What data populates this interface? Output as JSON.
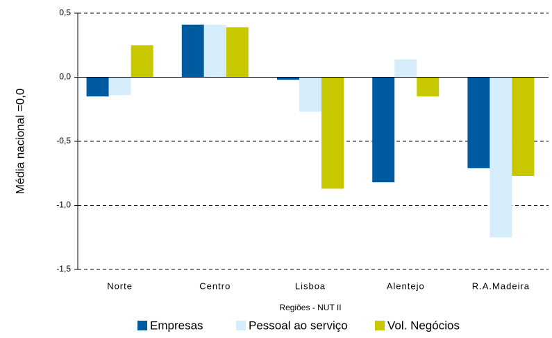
{
  "chart_data": {
    "type": "bar",
    "x_label": "Regiões - NUT II",
    "y_label": "Média nacional =0,0",
    "categories": [
      "Norte",
      "Centro",
      "Lisboa",
      "Alentejo",
      "R.A.Madeira"
    ],
    "series": [
      {
        "name": "Empresas",
        "color": "#005aa0",
        "values": [
          -0.15,
          0.41,
          -0.02,
          -0.82,
          -0.71
        ]
      },
      {
        "name": "Pessoal ao serviço",
        "color": "#d6eefc",
        "values": [
          -0.14,
          0.41,
          -0.27,
          0.14,
          -1.25
        ]
      },
      {
        "name": "Vol. Negócios",
        "color": "#c8c800",
        "values": [
          0.25,
          0.39,
          -0.87,
          -0.15,
          -0.77
        ]
      }
    ],
    "ylim": [
      -1.5,
      0.5
    ],
    "yticks": [
      {
        "value": 0.5,
        "label": "0,5"
      },
      {
        "value": 0,
        "label": "0,0"
      },
      {
        "value": -0.5,
        "label": "-0,5"
      },
      {
        "value": -1,
        "label": "-1,0"
      },
      {
        "value": -1.5,
        "label": "-1,5"
      }
    ],
    "grid": true
  }
}
